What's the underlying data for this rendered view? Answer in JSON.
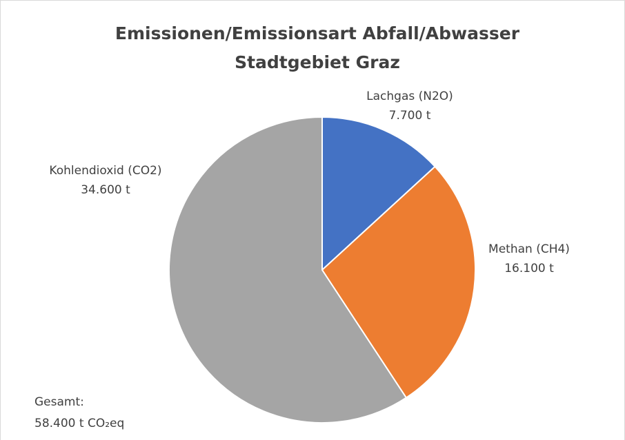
{
  "chart_data": {
    "type": "pie",
    "title": [
      "Emissionen/Emissionsart Abfall/Abwasser",
      "Stadtgebiet Graz"
    ],
    "categories": [
      "Lachgas (N2O)",
      "Methan (CH4)",
      "Kohlendioxid (CO2)"
    ],
    "values": [
      7700,
      16100,
      34600
    ],
    "value_labels": [
      "7.700 t",
      "16.100 t",
      "34.600 t"
    ],
    "colors": [
      "#4472c4",
      "#ed7d31",
      "#a5a5a5"
    ],
    "annotations": [
      "Gesamt:",
      "58.400 t CO₂eq"
    ]
  }
}
